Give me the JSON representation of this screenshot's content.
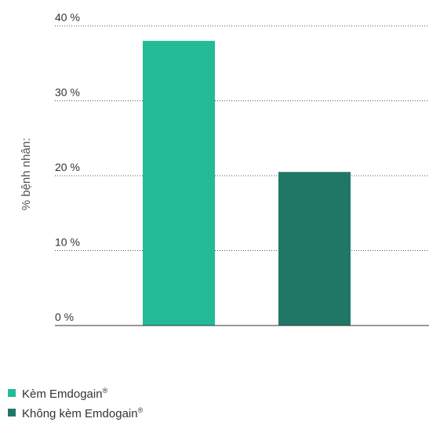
{
  "chart_data": {
    "type": "bar",
    "ylabel": "% bệnh nhân:",
    "y_ticks": [
      "0 %",
      "10 %",
      "20 %",
      "30 %",
      "40 %"
    ],
    "ylim": [
      0,
      40
    ],
    "grid": "horizontal dotted",
    "legend_position": "bottom-left",
    "series": [
      {
        "name": "Kèm Emdogain",
        "mark": "®",
        "value": 38,
        "color": "#22bb95"
      },
      {
        "name": "Không kèm Emdogain",
        "mark": "®",
        "value": 20.5,
        "color": "#217766"
      }
    ]
  }
}
